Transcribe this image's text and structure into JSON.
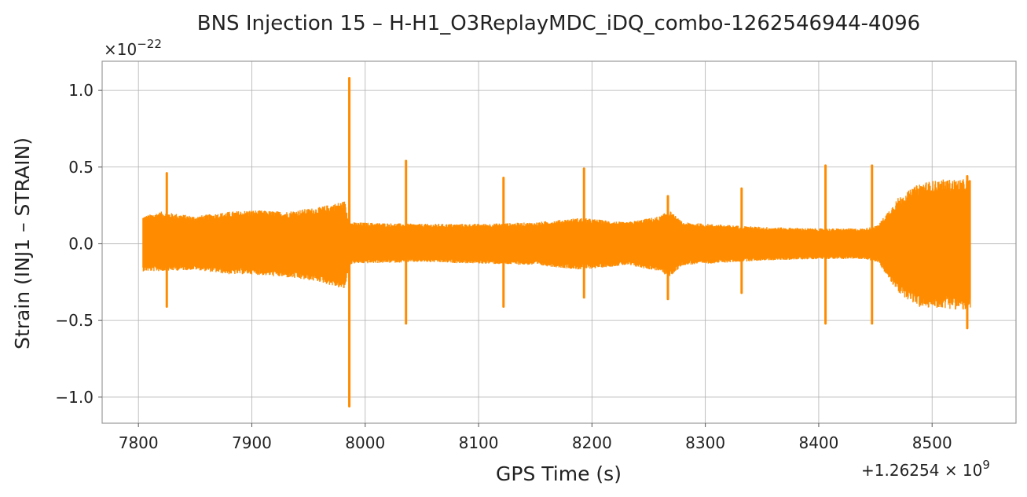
{
  "chart_data": {
    "type": "line",
    "title": "BNS Injection 15 – H-H1_O3ReplayMDC_iDQ_combo-1262546944-4096",
    "xlabel": "GPS Time (s)",
    "ylabel": "Strain (INJ1 – STRAIN)",
    "x_offset_label": "+1.26254 × 10",
    "x_offset_exponent": "9",
    "y_scale_label": "×10",
    "y_scale_exponent": "−22",
    "xlim": [
      7768,
      8574
    ],
    "ylim": [
      -1.17,
      1.19
    ],
    "x_ticks": [
      7800,
      7900,
      8000,
      8100,
      8200,
      8300,
      8400,
      8500
    ],
    "x_tick_labels": [
      "7800",
      "7900",
      "8000",
      "8100",
      "8200",
      "8300",
      "8400",
      "8500"
    ],
    "y_ticks": [
      -1.0,
      -0.5,
      0.0,
      0.5,
      1.0
    ],
    "y_tick_labels": [
      "−1.0",
      "−0.5",
      "0.0",
      "0.5",
      "1.0"
    ],
    "grid": true,
    "line_color": "#ff8c00",
    "series": [
      {
        "x_start": 7804,
        "x_end": 8534,
        "envelope": {
          "x": [
            7804,
            7820,
            7850,
            7880,
            7900,
            7930,
            7960,
            7982,
            7986,
            7990,
            8050,
            8100,
            8150,
            8190,
            8230,
            8260,
            8268,
            8280,
            8350,
            8400,
            8440,
            8452,
            8470,
            8490,
            8510,
            8534
          ],
          "upper": [
            0.18,
            0.21,
            0.18,
            0.21,
            0.22,
            0.21,
            0.24,
            0.28,
            0.14,
            0.14,
            0.13,
            0.13,
            0.14,
            0.17,
            0.14,
            0.18,
            0.22,
            0.14,
            0.11,
            0.1,
            0.1,
            0.12,
            0.3,
            0.4,
            0.42,
            0.42
          ],
          "lower": [
            -0.18,
            -0.18,
            -0.17,
            -0.2,
            -0.2,
            -0.22,
            -0.25,
            -0.3,
            -0.14,
            -0.13,
            -0.12,
            -0.13,
            -0.14,
            -0.17,
            -0.14,
            -0.18,
            -0.22,
            -0.14,
            -0.11,
            -0.1,
            -0.1,
            -0.12,
            -0.32,
            -0.42,
            -0.42,
            -0.44
          ]
        },
        "spikes": [
          {
            "x": 7825,
            "max": 0.46,
            "min": -0.41
          },
          {
            "x": 7986,
            "max": 1.08,
            "min": -1.06
          },
          {
            "x": 8036,
            "max": 0.54,
            "min": -0.52
          },
          {
            "x": 8122,
            "max": 0.43,
            "min": -0.41
          },
          {
            "x": 8193,
            "max": 0.49,
            "min": -0.35
          },
          {
            "x": 8267,
            "max": 0.31,
            "min": -0.36
          },
          {
            "x": 8332,
            "max": 0.36,
            "min": -0.32
          },
          {
            "x": 8406,
            "max": 0.51,
            "min": -0.52
          },
          {
            "x": 8447,
            "max": 0.51,
            "min": -0.52
          },
          {
            "x": 8531,
            "max": 0.44,
            "min": -0.55
          }
        ]
      }
    ]
  }
}
